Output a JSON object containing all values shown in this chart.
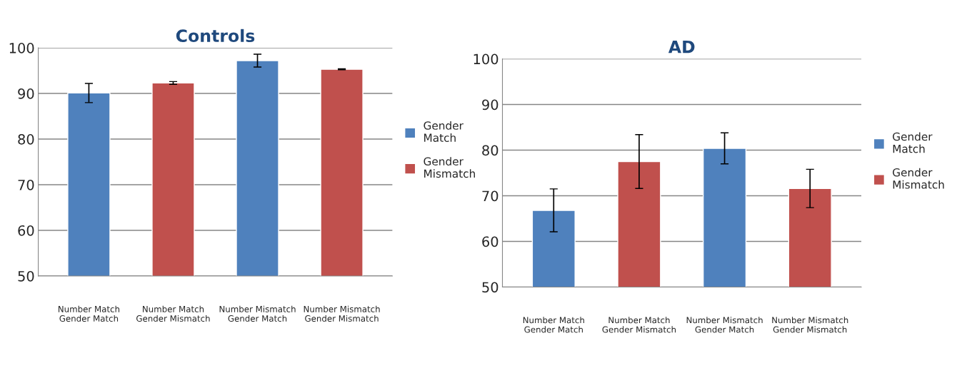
{
  "chart_data": [
    {
      "type": "bar",
      "title": "Controls",
      "categories": [
        "Number Match\nGender Match",
        "Number Match\nGender Mismatch",
        "Number Mismatch\nGender Match",
        "Number Mismatch\nGender Mismatch"
      ],
      "ylim": [
        50,
        100
      ],
      "yticks": [
        50,
        60,
        70,
        80,
        90,
        100
      ],
      "grid": "y",
      "legend": "right",
      "series": [
        {
          "name": "Gender\nMatch",
          "color": "#4f81bd",
          "values": [
            90.1,
            null,
            97.2,
            null
          ],
          "errors": [
            2.1,
            null,
            1.4,
            null
          ]
        },
        {
          "name": "Gender\nMismatch",
          "color": "#c0504d",
          "values": [
            null,
            92.3,
            null,
            95.3
          ],
          "errors": [
            null,
            0.3,
            null,
            0.1
          ]
        }
      ]
    },
    {
      "type": "bar",
      "title": "AD",
      "categories": [
        "Number Match\nGender Match",
        "Number Match\nGender Mismatch",
        "Number Mismatch\nGender Match",
        "Number Mismatch\nGender Mismatch"
      ],
      "ylim": [
        50,
        100
      ],
      "yticks": [
        50,
        60,
        70,
        80,
        90,
        100
      ],
      "grid": "y",
      "legend": "right",
      "series": [
        {
          "name": "Gender\nMatch",
          "color": "#4f81bd",
          "values": [
            66.8,
            null,
            80.4,
            null
          ],
          "errors": [
            4.7,
            null,
            3.4,
            null
          ]
        },
        {
          "name": "Gender\nMismatch",
          "color": "#c0504d",
          "values": [
            null,
            77.5,
            null,
            71.6
          ],
          "errors": [
            null,
            5.9,
            null,
            4.2
          ]
        }
      ]
    }
  ]
}
